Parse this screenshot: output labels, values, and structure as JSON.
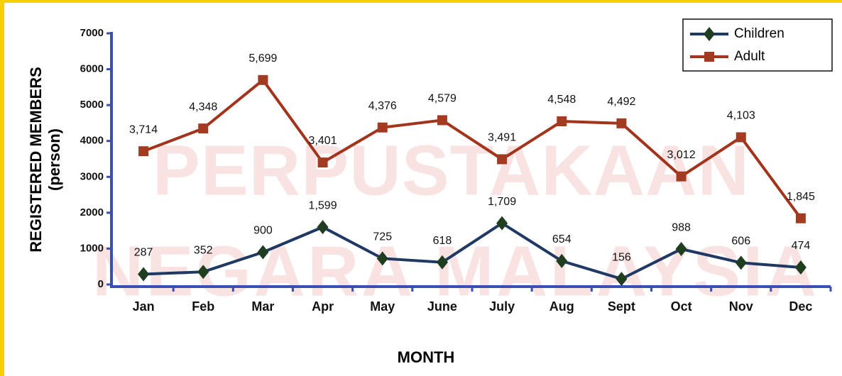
{
  "chart_data": {
    "type": "line",
    "watermark": [
      "PERPUSTAKAAN",
      "NEGARA MALAYSIA"
    ],
    "ylabel": [
      "REGISTERED MEMBERS",
      "(person)"
    ],
    "xlabel": "MONTH",
    "categories": [
      "Jan",
      "Feb",
      "Mar",
      "Apr",
      "May",
      "June",
      "July",
      "Aug",
      "Sept",
      "Oct",
      "Nov",
      "Dec"
    ],
    "series": [
      {
        "name": "Children",
        "color": "#1f3864",
        "marker": "diamond",
        "marker_color": "#1f3d1f",
        "values": [
          287,
          352,
          900,
          1599,
          725,
          618,
          1709,
          654,
          156,
          988,
          606,
          474
        ],
        "value_labels": [
          "287",
          "352",
          "900",
          "1,599",
          "725",
          "618",
          "1,709",
          "654",
          "156",
          "988",
          "606",
          "474"
        ]
      },
      {
        "name": "Adult",
        "color": "#a3341c",
        "marker": "square",
        "marker_color": "#a33a22",
        "values": [
          3714,
          4348,
          5699,
          3401,
          4376,
          4579,
          3491,
          4548,
          4492,
          3012,
          4103,
          1845
        ],
        "value_labels": [
          "3,714",
          "4,348",
          "5,699",
          "3,401",
          "4,376",
          "4,579",
          "3,491",
          "4,548",
          "4,492",
          "3,012",
          "4,103",
          "1,845"
        ]
      }
    ],
    "ylim": [
      0,
      7000
    ],
    "yticks": [
      0,
      1000,
      2000,
      3000,
      4000,
      5000,
      6000,
      7000
    ],
    "grid": false,
    "legend": "top-right"
  }
}
